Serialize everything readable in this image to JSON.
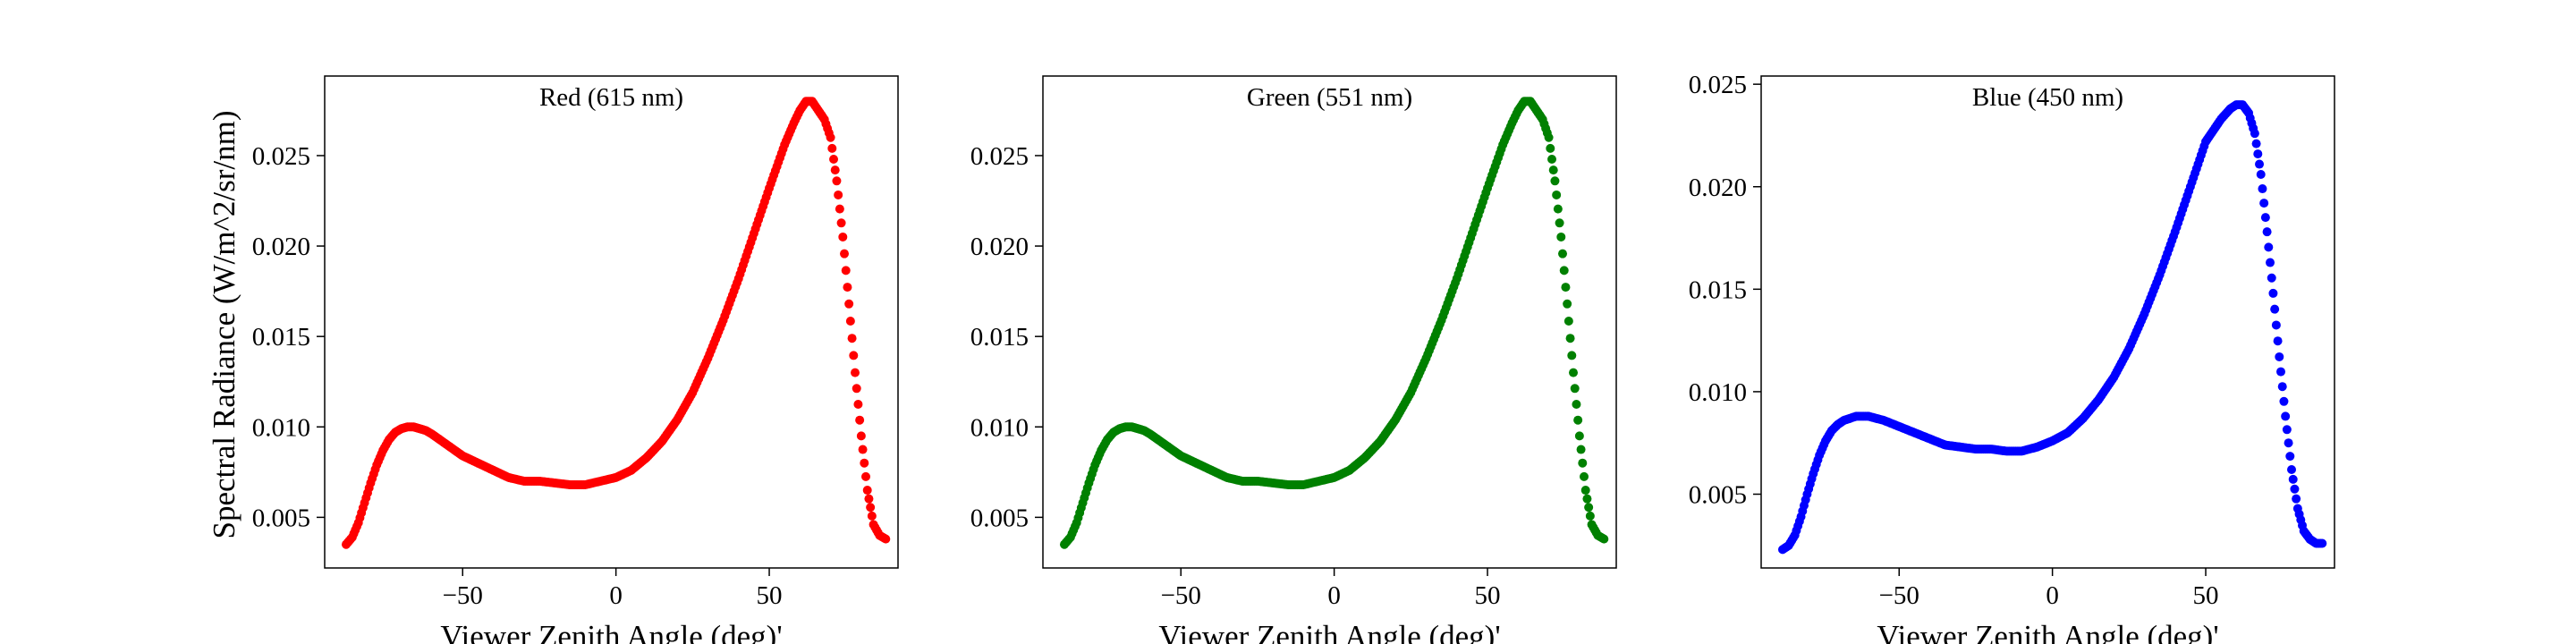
{
  "figure": {
    "ylabel": "Spectral Radiance (W/m^2/sr/nm)",
    "xlabel": "Viewer Zenith Angle (deg)'"
  },
  "chart_data": [
    {
      "type": "scatter",
      "title": "Red (615 nm)",
      "xlabel": "Viewer Zenith Angle (deg)'",
      "ylabel": "Spectral Radiance (W/m^2/sr/nm)",
      "color": "#ff0000",
      "xlim": [
        -95,
        92
      ],
      "ylim": [
        0.0022,
        0.0294
      ],
      "xticks": [
        -50,
        0,
        50
      ],
      "xtick_labels": [
        "−50",
        "0",
        "50"
      ],
      "yticks": [
        0.005,
        0.01,
        0.015,
        0.02,
        0.025
      ],
      "ytick_labels": [
        "0.005",
        "0.010",
        "0.015",
        "0.020",
        "0.025"
      ],
      "grid": false,
      "curve_points": {
        "x": [
          -88,
          -86,
          -84,
          -82,
          -80,
          -78,
          -76,
          -74,
          -72,
          -70,
          -68,
          -66,
          -64,
          -62,
          -60,
          -55,
          -50,
          -45,
          -40,
          -35,
          -30,
          -25,
          -20,
          -15,
          -10,
          -5,
          0,
          5,
          10,
          15,
          20,
          25,
          30,
          35,
          40,
          45,
          50,
          55,
          58,
          60,
          62,
          64,
          66,
          68,
          70,
          72,
          74,
          76,
          78,
          80,
          82,
          84,
          86,
          88
        ],
        "y": [
          0.0035,
          0.0039,
          0.0047,
          0.0058,
          0.0069,
          0.0079,
          0.0087,
          0.0093,
          0.0097,
          0.0099,
          0.01,
          0.01,
          0.0099,
          0.0098,
          0.0096,
          0.009,
          0.0084,
          0.008,
          0.0076,
          0.0072,
          0.007,
          0.007,
          0.0069,
          0.0068,
          0.0068,
          0.007,
          0.0072,
          0.0076,
          0.0083,
          0.0092,
          0.0104,
          0.0119,
          0.0138,
          0.0159,
          0.0182,
          0.0207,
          0.0232,
          0.0256,
          0.0268,
          0.0275,
          0.028,
          0.028,
          0.0275,
          0.027,
          0.026,
          0.0236,
          0.0205,
          0.0168,
          0.013,
          0.0095,
          0.0065,
          0.0046,
          0.004,
          0.0038
        ]
      }
    },
    {
      "type": "scatter",
      "title": "Green (551 nm)",
      "xlabel": "Viewer Zenith Angle (deg)'",
      "color": "#008000",
      "xlim": [
        -95,
        92
      ],
      "ylim": [
        0.0022,
        0.0294
      ],
      "xticks": [
        -50,
        0,
        50
      ],
      "xtick_labels": [
        "−50",
        "0",
        "50"
      ],
      "yticks": [
        0.005,
        0.01,
        0.015,
        0.02,
        0.025
      ],
      "ytick_labels": [
        "0.005",
        "0.010",
        "0.015",
        "0.020",
        "0.025"
      ],
      "grid": false,
      "curve_points": {
        "x": [
          -88,
          -86,
          -84,
          -82,
          -80,
          -78,
          -76,
          -74,
          -72,
          -70,
          -68,
          -66,
          -64,
          -62,
          -60,
          -55,
          -50,
          -45,
          -40,
          -35,
          -30,
          -25,
          -20,
          -15,
          -10,
          -5,
          0,
          5,
          10,
          15,
          20,
          25,
          30,
          35,
          40,
          45,
          50,
          55,
          58,
          60,
          62,
          64,
          66,
          68,
          70,
          72,
          74,
          76,
          78,
          80,
          82,
          84,
          86,
          88
        ],
        "y": [
          0.0035,
          0.0039,
          0.0047,
          0.0058,
          0.0069,
          0.0079,
          0.0087,
          0.0093,
          0.0097,
          0.0099,
          0.01,
          0.01,
          0.0099,
          0.0098,
          0.0096,
          0.009,
          0.0084,
          0.008,
          0.0076,
          0.0072,
          0.007,
          0.007,
          0.0069,
          0.0068,
          0.0068,
          0.007,
          0.0072,
          0.0076,
          0.0083,
          0.0092,
          0.0104,
          0.0119,
          0.0138,
          0.0159,
          0.0182,
          0.0207,
          0.0232,
          0.0256,
          0.0268,
          0.0275,
          0.028,
          0.028,
          0.0275,
          0.027,
          0.026,
          0.0236,
          0.0205,
          0.0168,
          0.013,
          0.0095,
          0.0065,
          0.0046,
          0.004,
          0.0038
        ]
      }
    },
    {
      "type": "scatter",
      "title": "Blue (450 nm)",
      "xlabel": "Viewer Zenith Angle (deg)'",
      "color": "#0000ff",
      "xlim": [
        -95,
        92
      ],
      "ylim": [
        0.0014,
        0.0254
      ],
      "xticks": [
        -50,
        0,
        50
      ],
      "xtick_labels": [
        "−50",
        "0",
        "50"
      ],
      "yticks": [
        0.005,
        0.01,
        0.015,
        0.02,
        0.025
      ],
      "ytick_labels": [
        "0.005",
        "0.010",
        "0.015",
        "0.020",
        "0.025"
      ],
      "grid": false,
      "curve_points": {
        "x": [
          -88,
          -86,
          -84,
          -82,
          -80,
          -78,
          -76,
          -74,
          -72,
          -70,
          -68,
          -66,
          -64,
          -62,
          -60,
          -55,
          -50,
          -45,
          -40,
          -35,
          -30,
          -25,
          -20,
          -15,
          -10,
          -5,
          0,
          5,
          10,
          15,
          20,
          25,
          30,
          35,
          40,
          45,
          50,
          55,
          58,
          60,
          62,
          64,
          66,
          68,
          70,
          72,
          74,
          76,
          78,
          80,
          82,
          84,
          86,
          88
        ],
        "y": [
          0.0023,
          0.0025,
          0.003,
          0.0039,
          0.005,
          0.006,
          0.0069,
          0.0076,
          0.0081,
          0.0084,
          0.0086,
          0.0087,
          0.0088,
          0.0088,
          0.0088,
          0.0086,
          0.0083,
          0.008,
          0.0077,
          0.0074,
          0.0073,
          0.0072,
          0.0072,
          0.0071,
          0.0071,
          0.0073,
          0.0076,
          0.008,
          0.0087,
          0.0096,
          0.0107,
          0.0121,
          0.0138,
          0.0157,
          0.0178,
          0.02,
          0.0222,
          0.0233,
          0.0238,
          0.024,
          0.024,
          0.0236,
          0.0226,
          0.0206,
          0.0178,
          0.0148,
          0.0117,
          0.0088,
          0.0062,
          0.0043,
          0.0032,
          0.0028,
          0.0026,
          0.0026
        ]
      }
    }
  ]
}
